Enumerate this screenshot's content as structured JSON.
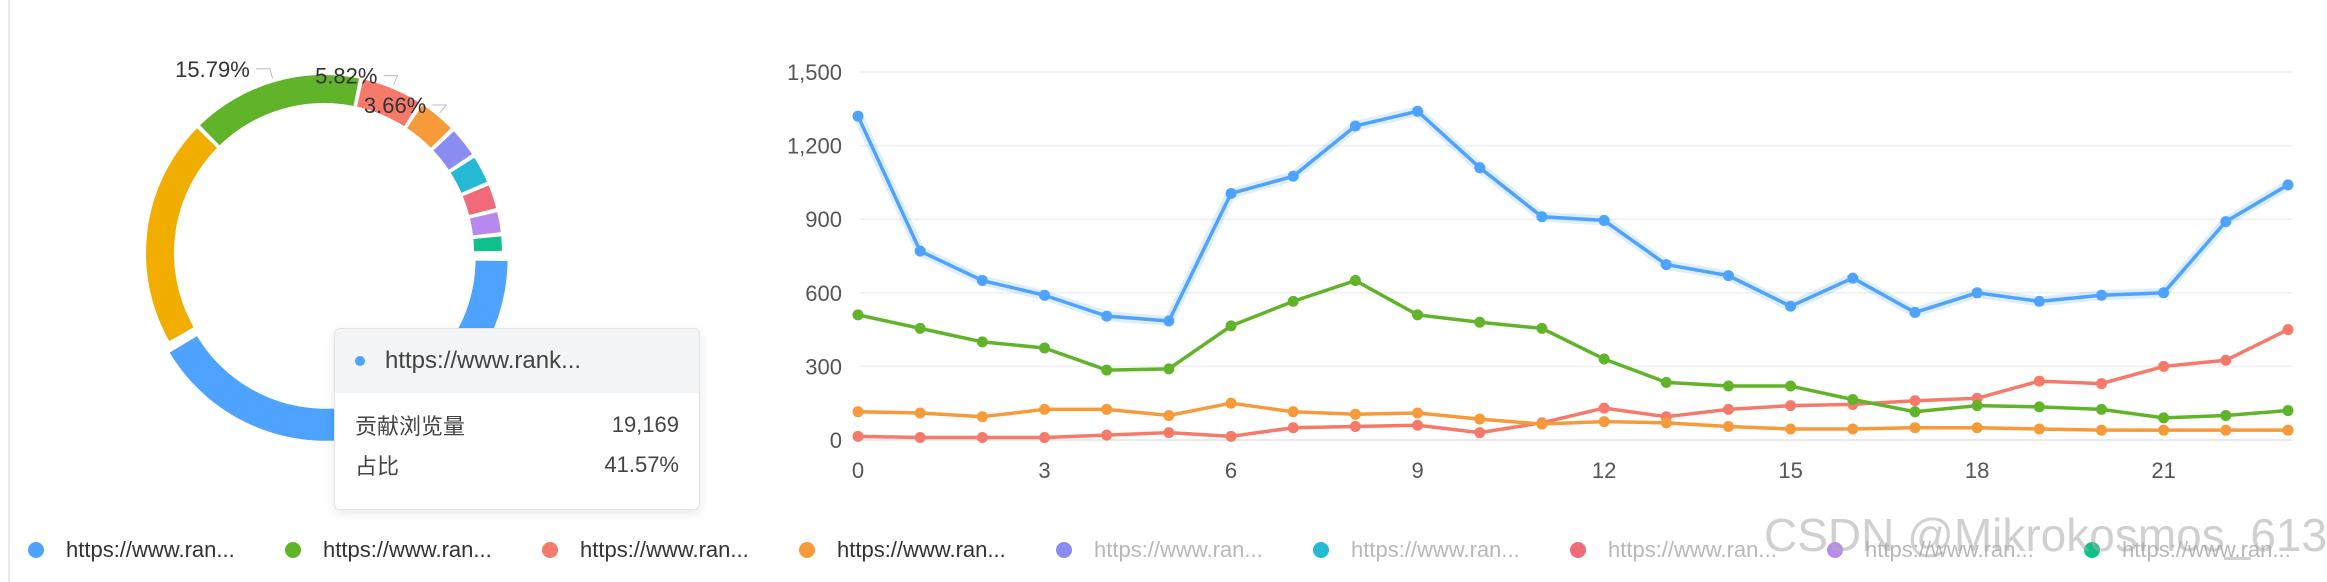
{
  "chart_data": [
    {
      "type": "pie",
      "variant": "donut",
      "slices": [
        {
          "series": 0,
          "value": 41.57,
          "color": "#4da3ff",
          "label": ""
        },
        {
          "series": 1,
          "value": 20.98,
          "color": "#f1ad00",
          "label": ""
        },
        {
          "series": 2,
          "value": 15.79,
          "color": "#61b42a",
          "label": "15.79%"
        },
        {
          "series": 3,
          "value": 5.82,
          "color": "#f67a6a",
          "label": "5.82%"
        },
        {
          "series": 4,
          "value": 3.66,
          "color": "#f79a3a",
          "label": "3.66%"
        },
        {
          "series": 5,
          "value": 3.0,
          "color": "#8a8cf2",
          "label": ""
        },
        {
          "series": 6,
          "value": 2.8,
          "color": "#26b9d6",
          "label": ""
        },
        {
          "series": 7,
          "value": 2.5,
          "color": "#f06a7a",
          "label": ""
        },
        {
          "series": 8,
          "value": 2.2,
          "color": "#b88af0",
          "label": ""
        },
        {
          "series": 9,
          "value": 1.68,
          "color": "#10c08a",
          "label": ""
        }
      ],
      "highlighted_slice": 0
    },
    {
      "type": "line",
      "x": [
        0,
        1,
        2,
        3,
        4,
        5,
        6,
        7,
        8,
        9,
        10,
        11,
        12,
        13,
        14,
        15,
        16,
        17,
        18,
        19,
        20,
        21,
        22,
        23
      ],
      "x_ticks": [
        "0",
        "3",
        "6",
        "9",
        "12",
        "15",
        "18",
        "21"
      ],
      "x_tick_values": [
        0,
        3,
        6,
        9,
        12,
        15,
        18,
        21
      ],
      "y_ticks": [
        "0",
        "300",
        "600",
        "900",
        "1,200",
        "1,500"
      ],
      "y_tick_values": [
        0,
        300,
        600,
        900,
        1200,
        1500
      ],
      "ylim": [
        0,
        1500
      ],
      "xlim": [
        0,
        23
      ],
      "grid": true,
      "series": [
        {
          "color": "#4da3ff",
          "values": [
            1320,
            770,
            650,
            590,
            505,
            485,
            1005,
            1075,
            1280,
            1340,
            1110,
            910,
            895,
            715,
            670,
            545,
            660,
            520,
            600,
            565,
            590,
            600,
            890,
            1040
          ]
        },
        {
          "color": "#61b42a",
          "values": [
            510,
            455,
            400,
            375,
            285,
            290,
            465,
            565,
            650,
            510,
            480,
            455,
            330,
            235,
            220,
            220,
            165,
            115,
            140,
            135,
            125,
            90,
            100,
            120
          ]
        },
        {
          "color": "#f79a3a",
          "values": [
            115,
            110,
            95,
            125,
            125,
            100,
            150,
            115,
            105,
            110,
            85,
            65,
            75,
            70,
            55,
            45,
            45,
            50,
            50,
            45,
            40,
            40,
            40,
            40
          ]
        },
        {
          "color": "#f67a6a",
          "values": [
            15,
            10,
            10,
            10,
            20,
            30,
            15,
            50,
            55,
            60,
            30,
            70,
            130,
            95,
            125,
            140,
            145,
            160,
            170,
            240,
            230,
            300,
            325,
            450
          ]
        }
      ]
    }
  ],
  "tooltip": {
    "title": "https://www.rank...",
    "rows": [
      {
        "label": "贡献浏览量",
        "value": "19,169"
      },
      {
        "label": "占比",
        "value": "41.57%"
      }
    ]
  },
  "legend": {
    "items": [
      {
        "label": "https://www.ran...",
        "color": "#4da3ff",
        "active": true
      },
      {
        "label": "https://www.ran...",
        "color": "#61b42a",
        "active": true
      },
      {
        "label": "https://www.ran...",
        "color": "#f67a6a",
        "active": true
      },
      {
        "label": "https://www.ran...",
        "color": "#f79a3a",
        "active": true
      },
      {
        "label": "https://www.ran...",
        "color": "#8a8cf2",
        "active": false
      },
      {
        "label": "https://www.ran...",
        "color": "#26b9d6",
        "active": false
      },
      {
        "label": "https://www.ran...",
        "color": "#f06a7a",
        "active": false
      },
      {
        "label": "https://www.ran...",
        "color": "#b88af0",
        "active": false
      },
      {
        "label": "https://www.ran...",
        "color": "#10c08a",
        "active": false
      }
    ]
  },
  "watermark": "CSDN @Mikrokosmos_613"
}
